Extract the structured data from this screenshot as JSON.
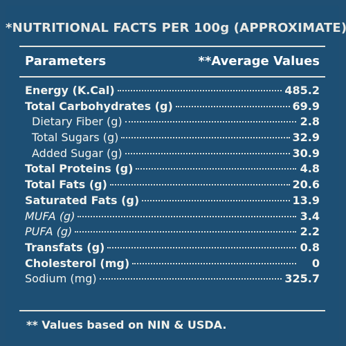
{
  "title": "*NUTRITIONAL FACTS PER 100g (APPROXIMATE)",
  "header": {
    "left": "Parameters",
    "right": "**Average Values"
  },
  "rows": [
    {
      "name": "Energy (K.Cal)",
      "value": "485.2"
    },
    {
      "name": "Total Carbohydrates (g)",
      "value": "69.9"
    },
    {
      "name": "Dietary Fiber (g)",
      "value": "2.8"
    },
    {
      "name": "Total Sugars (g)",
      "value": "32.9"
    },
    {
      "name": "Added Sugar (g)",
      "value": "30.9"
    },
    {
      "name": "Total Proteins (g)",
      "value": "4.8"
    },
    {
      "name": "Total Fats (g)",
      "value": "20.6"
    },
    {
      "name": "Saturated Fats (g)",
      "value": "13.9"
    },
    {
      "name": "MUFA (g)",
      "value": "3.4"
    },
    {
      "name": "PUFA (g)",
      "value": "2.2"
    },
    {
      "name": "Transfats (g)",
      "value": "0.8"
    },
    {
      "name": "Cholesterol (mg)",
      "value": "0"
    },
    {
      "name": "Sodium (mg)",
      "value": "325.7"
    }
  ],
  "footer": "** Values based on NIN & USDA."
}
